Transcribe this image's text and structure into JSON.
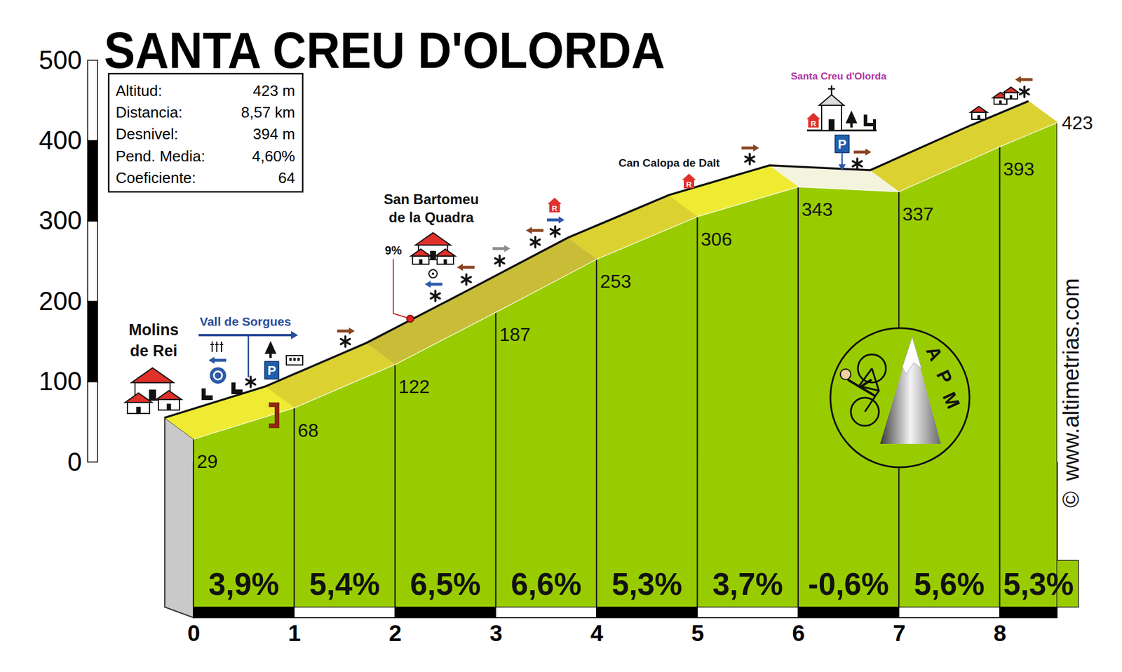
{
  "chart_data": {
    "type": "area",
    "title": "SANTA CREU D'OLORDA",
    "color": "#99cc00",
    "x": [
      0,
      1,
      2,
      3,
      4,
      5,
      6,
      7,
      8,
      8.57
    ],
    "values": [
      29,
      68,
      122,
      187,
      253,
      306,
      343,
      337,
      393,
      423
    ],
    "data_labels": true,
    "xlim": [
      0,
      8.57
    ],
    "xticks": [
      0,
      1,
      2,
      3,
      4,
      5,
      6,
      7,
      8
    ],
    "ylim": [
      0,
      500
    ],
    "yticks": [
      0,
      100,
      200,
      300,
      400,
      500
    ],
    "gradients": {
      "values": [
        3.9,
        5.4,
        6.5,
        6.6,
        5.3,
        3.7,
        -0.6,
        5.6,
        5.3
      ],
      "value_labels": [
        "3,9%",
        "5,4%",
        "6,5%",
        "6,6%",
        "5,3%",
        "3,7%",
        "-0,6%",
        "5,6%",
        "5,3%"
      ]
    },
    "info_box": [
      {
        "label": "Altitud:",
        "value": "423 m"
      },
      {
        "label": "Distancia:",
        "value": "8,57 km"
      },
      {
        "label": "Desnivel:",
        "value": "394 m"
      },
      {
        "label": "Pend. Media:",
        "value": "4,60%"
      },
      {
        "label": "Coeficiente:",
        "value": "64"
      }
    ],
    "annotations": [
      {
        "text": [
          "Molins",
          "de Rei"
        ]
      },
      {
        "text": "Vall de Sorgues"
      },
      {
        "text": "9%"
      },
      {
        "text": [
          "San Bartomeu",
          "de la Quadra"
        ]
      },
      {
        "text": "Can Calopa de Dalt"
      },
      {
        "text": "Santa Creu d'Olorda"
      }
    ],
    "icon_letters": {
      "restaurant": "R",
      "parking": "P"
    },
    "logo_letters": [
      "A",
      "P",
      "M"
    ],
    "credit": "www.altimetrias.com",
    "copyright": "©"
  }
}
